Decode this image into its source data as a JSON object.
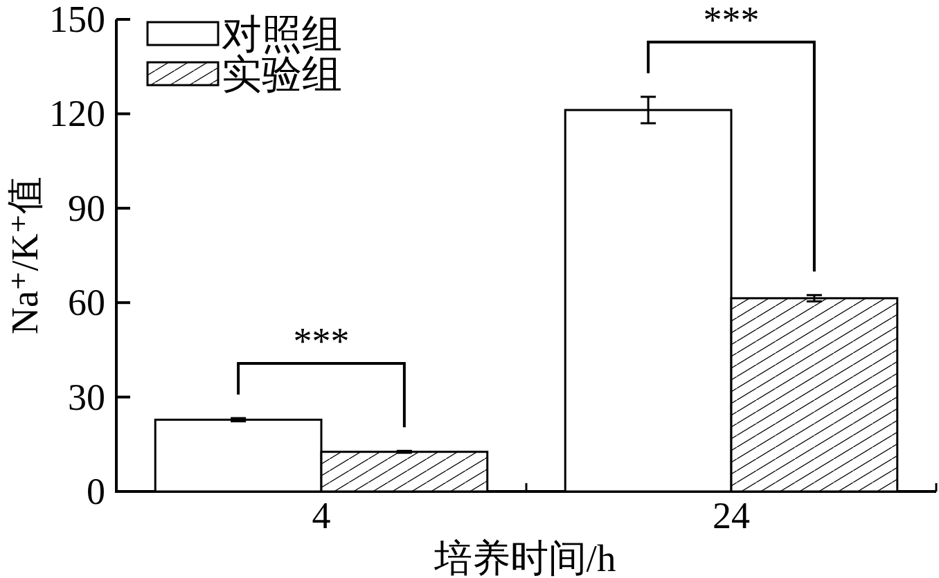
{
  "chart_data": {
    "type": "bar",
    "xlabel": "培养时间/h",
    "ylabel": "Na⁺/K⁺值",
    "categories": [
      "4",
      "24"
    ],
    "series": [
      {
        "name": "对照组",
        "color": "#ffffff",
        "values": [
          22.8,
          121.2
        ],
        "errors": [
          0.5,
          4.2
        ]
      },
      {
        "name": "实验组",
        "color": "#000000",
        "values": [
          12.6,
          61.4
        ],
        "errors": [
          0.3,
          1.0
        ]
      }
    ],
    "ylim": [
      0,
      150
    ],
    "yticks": [
      0,
      30,
      60,
      90,
      120,
      150
    ],
    "annotations": [
      "***",
      "***"
    ],
    "legend": "top left"
  }
}
